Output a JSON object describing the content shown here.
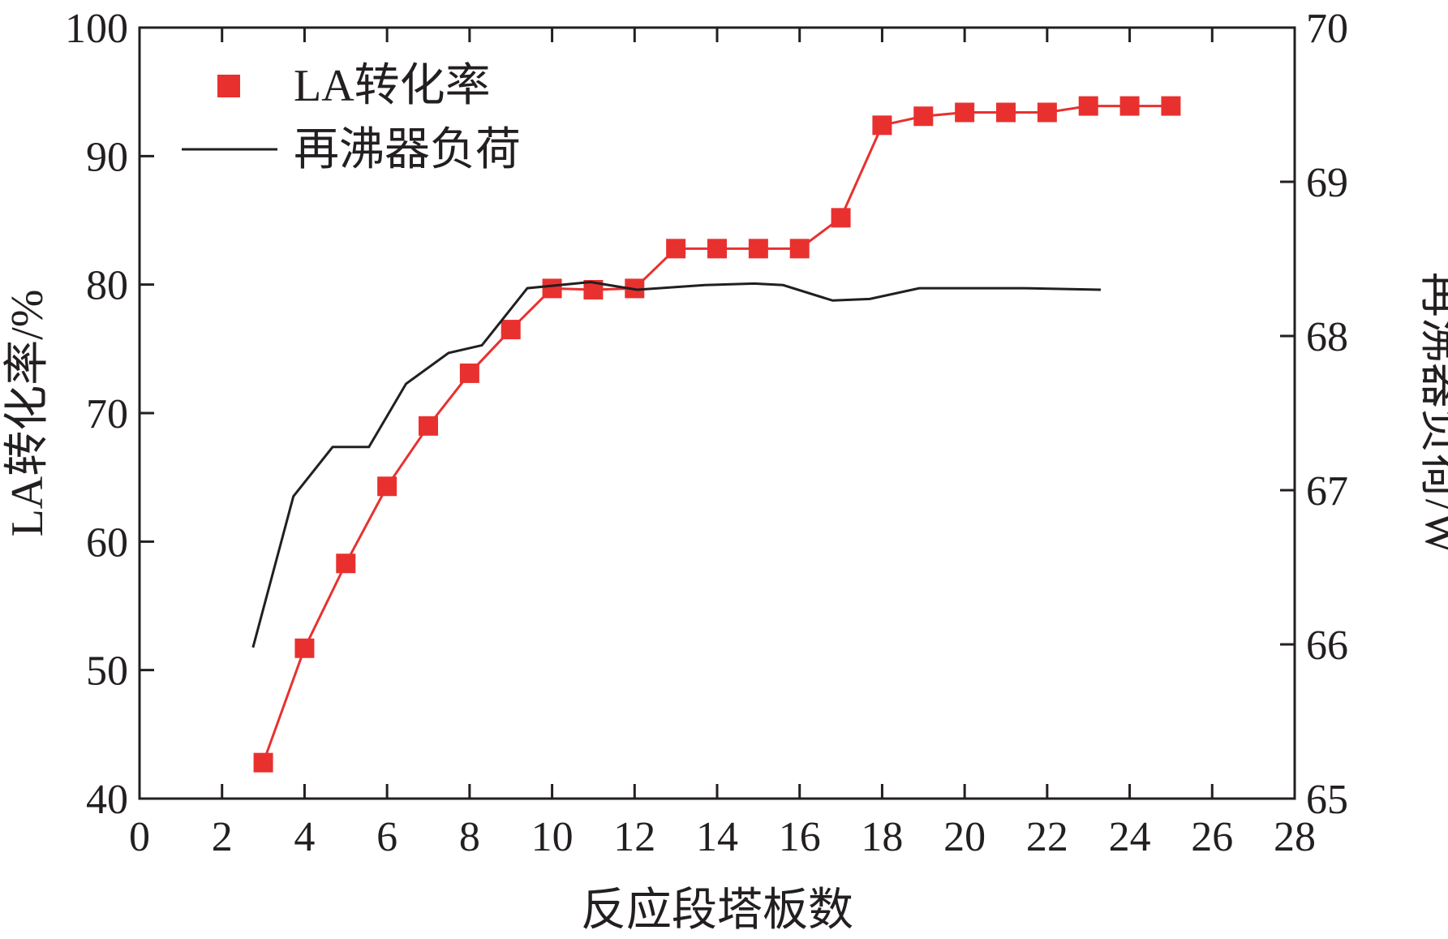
{
  "chart_data": {
    "type": "line",
    "xlabel": "反应段塔板数",
    "ylabel": "LA转化率/%",
    "y2label": "再沸器负荷/W",
    "xlim": [
      0,
      28
    ],
    "ylim": [
      40,
      100
    ],
    "y2lim": [
      65,
      70
    ],
    "xticks": [
      "0",
      "2",
      "4",
      "6",
      "8",
      "10",
      "12",
      "14",
      "16",
      "18",
      "20",
      "22",
      "24",
      "26",
      "28"
    ],
    "yticks": [
      "40",
      "50",
      "60",
      "70",
      "80",
      "90",
      "100"
    ],
    "y2ticks": [
      "65",
      "66",
      "67",
      "68",
      "69",
      "70"
    ],
    "grid": false,
    "legend_position": "top-left",
    "series": [
      {
        "name": "LA转化率",
        "axis": "left",
        "color": "#e8312f",
        "marker": "square",
        "x": [
          3,
          4,
          5,
          6,
          7,
          8,
          9,
          10,
          11,
          12,
          13,
          14,
          15,
          16,
          17,
          18,
          19,
          20,
          21,
          22,
          23,
          24,
          25
        ],
        "y": [
          42.8,
          51.7,
          58.3,
          64.3,
          69.0,
          73.1,
          76.5,
          79.7,
          79.6,
          79.7,
          82.8,
          82.8,
          82.8,
          82.8,
          85.2,
          92.4,
          93.1,
          93.4,
          93.4,
          93.4,
          93.9,
          93.9,
          93.9
        ]
      },
      {
        "name": "再沸器负荷",
        "axis": "right",
        "color": "#231f20",
        "marker": "none",
        "x": [
          2.75,
          3.73,
          4.68,
          5.56,
          6.46,
          7.49,
          8.3,
          9.4,
          10.93,
          12.06,
          13.7,
          14.9,
          15.6,
          16.8,
          17.7,
          18.9,
          21.4,
          23.3
        ],
        "y": [
          65.98,
          66.96,
          67.28,
          67.28,
          67.69,
          67.89,
          67.94,
          68.31,
          68.35,
          68.3,
          68.33,
          68.34,
          68.33,
          68.23,
          68.24,
          68.31,
          68.31,
          68.3
        ]
      }
    ]
  }
}
